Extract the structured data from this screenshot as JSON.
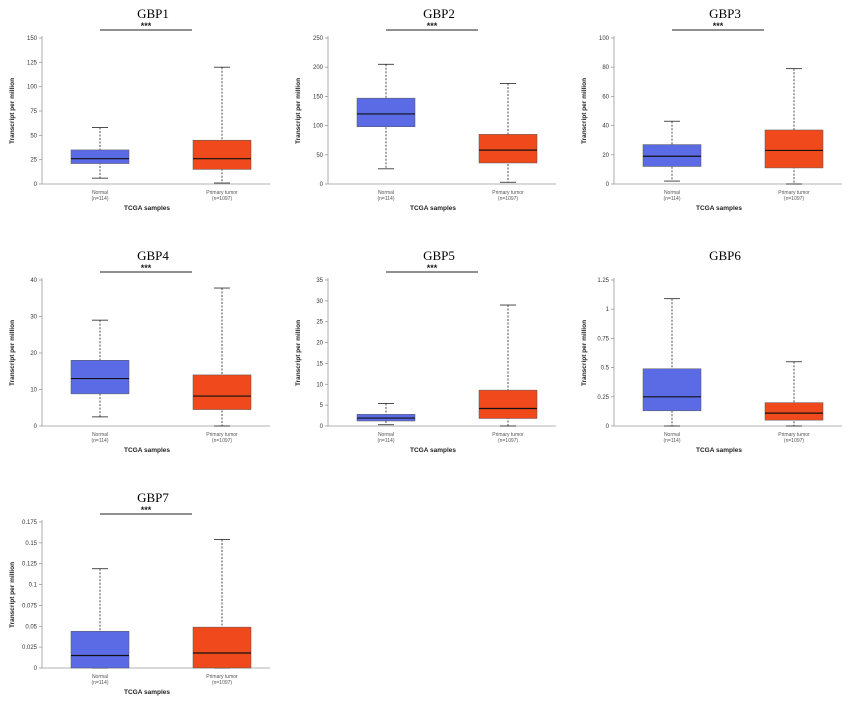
{
  "chart_data": [
    {
      "type": "box",
      "title": "GBP1",
      "ylabel": "Transcript per million",
      "xlabel": "TCGA samples",
      "yticks": [
        0,
        25,
        50,
        75,
        100,
        125,
        150
      ],
      "ylim": [
        0,
        150
      ],
      "significance": "***",
      "categories": [
        "Normal",
        "Primary tumor"
      ],
      "counts": [
        "(n=114)",
        "(n=1097)"
      ],
      "colors": [
        "#5b6be6",
        "#f04a1c"
      ],
      "boxes": [
        {
          "min": 6,
          "q1": 21,
          "median": 26,
          "q3": 35,
          "max": 58
        },
        {
          "min": 1,
          "q1": 15,
          "median": 26,
          "q3": 45,
          "max": 120
        }
      ]
    },
    {
      "type": "box",
      "title": "GBP2",
      "ylabel": "Transcript per million",
      "xlabel": "TCGA samples",
      "yticks": [
        0,
        50,
        100,
        150,
        200,
        250
      ],
      "ylim": [
        0,
        250
      ],
      "significance": "***",
      "categories": [
        "Normal",
        "Primary tumor"
      ],
      "counts": [
        "(n=114)",
        "(n=1097)"
      ],
      "colors": [
        "#5b6be6",
        "#f04a1c"
      ],
      "boxes": [
        {
          "min": 26,
          "q1": 98,
          "median": 120,
          "q3": 147,
          "max": 205
        },
        {
          "min": 3,
          "q1": 36,
          "median": 58,
          "q3": 85,
          "max": 172
        }
      ]
    },
    {
      "type": "box",
      "title": "GBP3",
      "ylabel": "Transcript per million",
      "xlabel": "TCGA samples",
      "yticks": [
        0,
        20,
        40,
        60,
        80,
        100
      ],
      "ylim": [
        0,
        100
      ],
      "significance": "***",
      "categories": [
        "Normal",
        "Primary tumor"
      ],
      "counts": [
        "(n=114)",
        "(n=1097)"
      ],
      "colors": [
        "#5b6be6",
        "#f04a1c"
      ],
      "boxes": [
        {
          "min": 2,
          "q1": 12,
          "median": 19,
          "q3": 27,
          "max": 43
        },
        {
          "min": 0,
          "q1": 11,
          "median": 23,
          "q3": 37,
          "max": 79
        }
      ]
    },
    {
      "type": "box",
      "title": "GBP4",
      "ylabel": "Transcript per million",
      "xlabel": "TCGA samples",
      "yticks": [
        0,
        10,
        20,
        30,
        40
      ],
      "ylim": [
        0,
        40
      ],
      "significance": "***",
      "categories": [
        "Normal",
        "Primary tumor"
      ],
      "counts": [
        "(n=114)",
        "(n=1097)"
      ],
      "colors": [
        "#5b6be6",
        "#f04a1c"
      ],
      "boxes": [
        {
          "min": 2.5,
          "q1": 8.8,
          "median": 13,
          "q3": 18,
          "max": 29
        },
        {
          "min": 0,
          "q1": 4.5,
          "median": 8.2,
          "q3": 14,
          "max": 37.8
        }
      ]
    },
    {
      "type": "box",
      "title": "GBP5",
      "ylabel": "Transcript per million",
      "xlabel": "TCGA samples",
      "yticks": [
        0,
        5,
        10,
        15,
        20,
        25,
        30,
        35
      ],
      "ylim": [
        0,
        35
      ],
      "significance": "***",
      "categories": [
        "Normal",
        "Primary tumor"
      ],
      "counts": [
        "(n=114)",
        "(n=1097)"
      ],
      "colors": [
        "#5b6be6",
        "#f04a1c"
      ],
      "boxes": [
        {
          "min": 0.3,
          "q1": 1.2,
          "median": 1.9,
          "q3": 2.8,
          "max": 5.4
        },
        {
          "min": 0,
          "q1": 1.8,
          "median": 4.2,
          "q3": 8.6,
          "max": 29
        }
      ]
    },
    {
      "type": "box",
      "title": "GBP6",
      "ylabel": "Transcript per million",
      "xlabel": "TCGA samples",
      "yticks": [
        0,
        0.25,
        0.5,
        0.75,
        1,
        1.25
      ],
      "ylim": [
        0,
        1.25
      ],
      "significance": "",
      "categories": [
        "Normal",
        "Primary tumor"
      ],
      "counts": [
        "(n=114)",
        "(n=1097)"
      ],
      "colors": [
        "#5b6be6",
        "#f04a1c"
      ],
      "boxes": [
        {
          "min": 0,
          "q1": 0.13,
          "median": 0.25,
          "q3": 0.49,
          "max": 1.09
        },
        {
          "min": 0,
          "q1": 0.05,
          "median": 0.11,
          "q3": 0.2,
          "max": 0.55
        }
      ]
    },
    {
      "type": "box",
      "title": "GBP7",
      "ylabel": "Transcript per million",
      "xlabel": "TCGA samples",
      "yticks": [
        0,
        0.025,
        0.05,
        0.075,
        0.1,
        0.125,
        0.15,
        0.175
      ],
      "ylim": [
        0,
        0.175
      ],
      "significance": "***",
      "categories": [
        "Normal",
        "Primary tumor"
      ],
      "counts": [
        "(n=114)",
        "(n=1097)"
      ],
      "colors": [
        "#5b6be6",
        "#f04a1c"
      ],
      "boxes": [
        {
          "min": 0,
          "q1": 0,
          "median": 0.015,
          "q3": 0.044,
          "max": 0.119
        },
        {
          "min": 0,
          "q1": 0,
          "median": 0.018,
          "q3": 0.049,
          "max": 0.154
        }
      ]
    }
  ]
}
